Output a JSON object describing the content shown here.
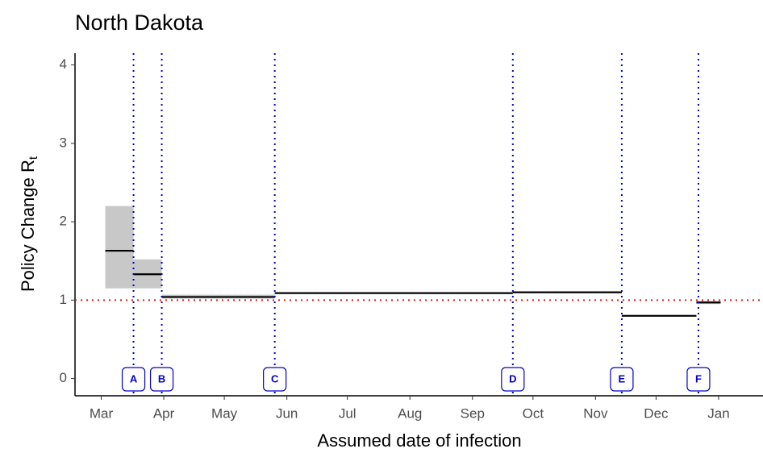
{
  "chart_data": {
    "type": "step",
    "title": "North Dakota",
    "x_label": "Assumed date of infection",
    "y_label": "Policy Change R",
    "y_label_subscript": "t",
    "xlim": [
      47,
      388
    ],
    "xticks": [
      {
        "value": 60,
        "label": "Mar"
      },
      {
        "value": 91,
        "label": "Apr"
      },
      {
        "value": 121,
        "label": "May"
      },
      {
        "value": 152,
        "label": "Jun"
      },
      {
        "value": 182,
        "label": "Jul"
      },
      {
        "value": 213,
        "label": "Aug"
      },
      {
        "value": 244,
        "label": "Sep"
      },
      {
        "value": 274,
        "label": "Oct"
      },
      {
        "value": 305,
        "label": "Nov"
      },
      {
        "value": 335,
        "label": "Dec"
      },
      {
        "value": 366,
        "label": "Jan"
      }
    ],
    "ylim": [
      -0.22,
      4.15
    ],
    "yticks": [
      0,
      1,
      2,
      3,
      4
    ],
    "line_color": "#000000",
    "band_color": "#c8c8c8",
    "segments": [
      {
        "x": [
          62,
          76
        ],
        "value": 1.63,
        "lower": 1.15,
        "upper": 2.2
      },
      {
        "x": [
          76,
          90
        ],
        "value": 1.33,
        "lower": 1.15,
        "upper": 1.52
      },
      {
        "x": [
          90,
          146
        ],
        "value": 1.04,
        "lower": 1.02,
        "upper": 1.07
      },
      {
        "x": [
          146,
          264
        ],
        "value": 1.09,
        "lower": 1.08,
        "upper": 1.1
      },
      {
        "x": [
          264,
          318
        ],
        "value": 1.1,
        "lower": 1.09,
        "upper": 1.11
      },
      {
        "x": [
          318,
          355
        ],
        "value": 0.8,
        "lower": 0.79,
        "upper": 0.81
      },
      {
        "x": [
          355,
          367
        ],
        "value": 0.97,
        "lower": 0.95,
        "upper": 0.99
      }
    ],
    "reference_line": {
      "value": 1,
      "color": "#e41a1c"
    },
    "policy_color": "#0000cc",
    "policies": [
      {
        "label": "A",
        "x": 76
      },
      {
        "label": "B",
        "x": 90
      },
      {
        "label": "C",
        "x": 146
      },
      {
        "label": "D",
        "x": 264
      },
      {
        "label": "E",
        "x": 318
      },
      {
        "label": "F",
        "x": 356
      }
    ]
  }
}
